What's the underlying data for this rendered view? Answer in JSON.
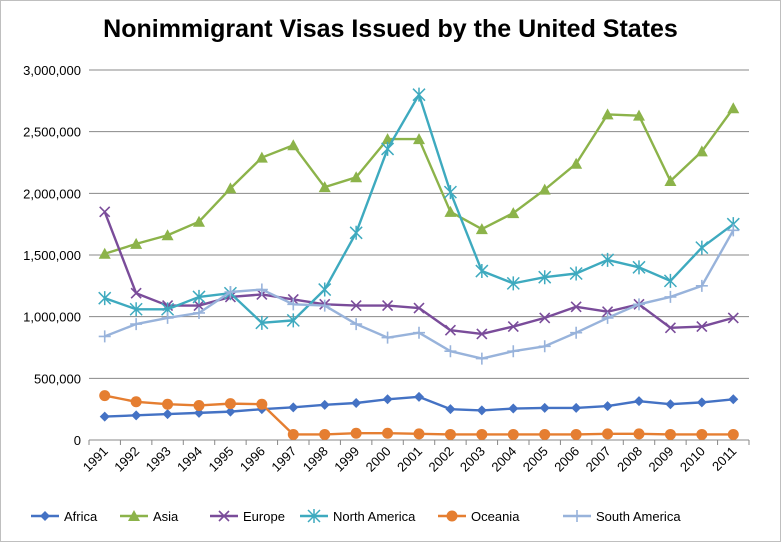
{
  "chart_data": {
    "type": "line",
    "title": "Nonimmigrant Visas Issued by the United States",
    "xlabel": "",
    "ylabel": "",
    "ylim": [
      0,
      3000000
    ],
    "y_ticks": [
      "0",
      "500,000",
      "1,000,000",
      "1,500,000",
      "2,000,000",
      "2,500,000",
      "3,000,000"
    ],
    "grid": "horizontal",
    "legend_position": "bottom",
    "categories": [
      "1991",
      "1992",
      "1993",
      "1994",
      "1995",
      "1996",
      "1997",
      "1998",
      "1999",
      "2000",
      "2001",
      "2002",
      "2003",
      "2004",
      "2005",
      "2006",
      "2007",
      "2008",
      "2009",
      "2010",
      "2011"
    ],
    "series": [
      {
        "name": "Africa",
        "color": "#4472c4",
        "marker": "diamond",
        "values": [
          190000,
          200000,
          210000,
          220000,
          230000,
          250000,
          265000,
          285000,
          300000,
          330000,
          350000,
          250000,
          240000,
          255000,
          260000,
          260000,
          275000,
          315000,
          290000,
          305000,
          330000
        ]
      },
      {
        "name": "Asia",
        "color": "#8cb34a",
        "marker": "triangle",
        "values": [
          1510000,
          1590000,
          1660000,
          1770000,
          2040000,
          2290000,
          2390000,
          2050000,
          2130000,
          2440000,
          2440000,
          1850000,
          1710000,
          1840000,
          2030000,
          2240000,
          2640000,
          2630000,
          2100000,
          2340000,
          2690000
        ]
      },
      {
        "name": "Europe",
        "color": "#7a4c9a",
        "marker": "x",
        "values": [
          1850000,
          1190000,
          1090000,
          1090000,
          1160000,
          1180000,
          1140000,
          1100000,
          1090000,
          1090000,
          1070000,
          890000,
          860000,
          920000,
          990000,
          1080000,
          1040000,
          1100000,
          910000,
          920000,
          990000
        ]
      },
      {
        "name": "North America",
        "color": "#3eaabf",
        "marker": "star",
        "values": [
          1150000,
          1060000,
          1060000,
          1160000,
          1190000,
          950000,
          970000,
          1220000,
          1680000,
          2360000,
          2800000,
          2010000,
          1370000,
          1270000,
          1320000,
          1350000,
          1460000,
          1400000,
          1290000,
          1560000,
          1750000
        ]
      },
      {
        "name": "Oceania",
        "color": "#e57e31",
        "marker": "circle",
        "values": [
          360000,
          310000,
          290000,
          280000,
          295000,
          290000,
          45000,
          45000,
          55000,
          55000,
          50000,
          45000,
          45000,
          45000,
          45000,
          45000,
          50000,
          50000,
          45000,
          45000,
          45000
        ]
      },
      {
        "name": "South America",
        "color": "#98b3db",
        "marker": "plus",
        "values": [
          840000,
          940000,
          990000,
          1030000,
          1200000,
          1220000,
          1100000,
          1090000,
          940000,
          830000,
          870000,
          720000,
          660000,
          720000,
          760000,
          870000,
          990000,
          1100000,
          1160000,
          1250000,
          1700000
        ]
      }
    ]
  }
}
